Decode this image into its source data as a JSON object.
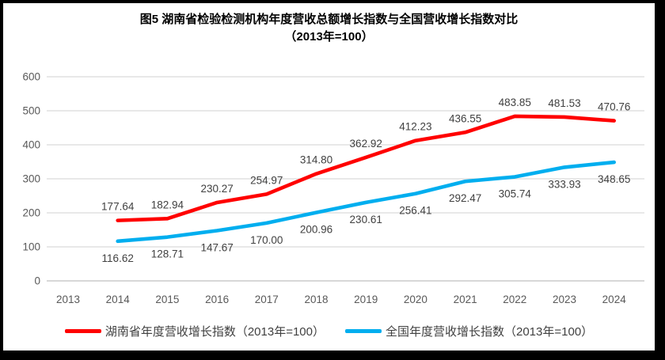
{
  "title": {
    "line1": "图5 湖南省检验检测机构年度营收总额增长指数与全国营收增长指数对比",
    "line2": "（2013年=100）"
  },
  "chart_data": {
    "type": "line",
    "categories": [
      "2013",
      "2014",
      "2015",
      "2016",
      "2017",
      "2018",
      "2019",
      "2020",
      "2021",
      "2022",
      "2023",
      "2024"
    ],
    "series": [
      {
        "name": "湖南省年度营收增长指数（2013年=100）",
        "color": "#FF0000",
        "label_position": "above",
        "values": [
          null,
          177.64,
          182.94,
          230.27,
          254.97,
          314.8,
          362.92,
          412.23,
          436.55,
          483.85,
          481.53,
          470.76
        ]
      },
      {
        "name": "全国年度营收增长指数（2013年=100）",
        "color": "#00AEEF",
        "label_position": "below",
        "values": [
          null,
          116.62,
          128.71,
          147.67,
          170.0,
          200.96,
          230.61,
          256.41,
          292.47,
          305.74,
          333.93,
          348.65
        ]
      }
    ],
    "xlabel": "",
    "ylabel": "",
    "ylim": [
      0,
      600
    ],
    "yticks": [
      0,
      100,
      200,
      300,
      400,
      500,
      600
    ],
    "grid": true,
    "legend_position": "bottom",
    "data_labels": true,
    "label_decimals": 2
  },
  "colors": {
    "grid": "#D9D9D9",
    "axis_line": "#BFBFBF",
    "tick_text": "#595959",
    "data_label_text": "#404040",
    "frame": "#000000"
  }
}
